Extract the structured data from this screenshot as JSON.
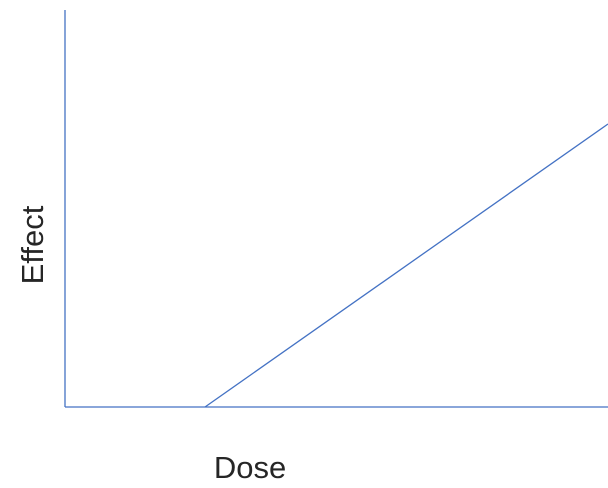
{
  "x_axis_label": "Dose",
  "y_axis_label": "Effect"
}
